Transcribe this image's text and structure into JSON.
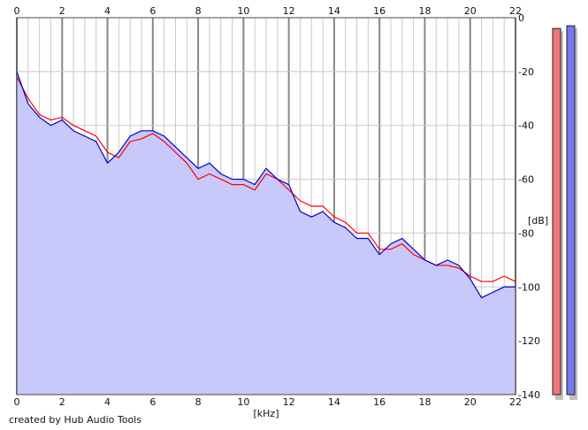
{
  "credit": "created by Hub Audio Tools",
  "chart_data": {
    "type": "line",
    "title": "",
    "xlabel": "[kHz]",
    "ylabel": "[dB]",
    "xlim": [
      0,
      22
    ],
    "ylim": [
      -140,
      0
    ],
    "x_ticks": [
      0,
      2,
      4,
      6,
      8,
      10,
      12,
      14,
      16,
      18,
      20,
      22
    ],
    "y_ticks": [
      0,
      -20,
      -40,
      -60,
      -80,
      -100,
      -120,
      -140
    ],
    "y_tick_labels": [
      "0",
      "-20",
      "-40",
      "-60",
      "-80",
      "-100",
      "-120",
      "-140"
    ],
    "grid": true,
    "x_tick_position": "top-and-bottom",
    "y_tick_position": "right",
    "colors": {
      "red_channel": "#ff0000",
      "blue_channel": "#0000cc",
      "fill": "#c8c8fa",
      "grid_major": "#888888",
      "grid_minor": "#c8c8c8",
      "red_meter": "#ee7777",
      "blue_meter": "#7777ee"
    },
    "series": [
      {
        "color": "#ff0000",
        "x": [
          0,
          0.5,
          1,
          1.5,
          2,
          2.5,
          3,
          3.5,
          4,
          4.5,
          5,
          5.5,
          6,
          6.5,
          7,
          7.5,
          8,
          8.5,
          9,
          9.5,
          10,
          10.5,
          11,
          11.5,
          12,
          12.5,
          13,
          13.5,
          14,
          14.5,
          15,
          15.5,
          16,
          16.5,
          17,
          17.5,
          18,
          18.5,
          19,
          19.5,
          20,
          20.5,
          21,
          21.5,
          22
        ],
        "y": [
          -22,
          -30,
          -36,
          -38,
          -37,
          -40,
          -42,
          -44,
          -50,
          -52,
          -46,
          -45,
          -43,
          -46,
          -50,
          -54,
          -60,
          -58,
          -60,
          -62,
          -62,
          -64,
          -58,
          -60,
          -64,
          -68,
          -70,
          -70,
          -74,
          -76,
          -80,
          -80,
          -86,
          -86,
          -84,
          -88,
          -90,
          -92,
          -92,
          -93,
          -96,
          -98,
          -98,
          -96,
          -98
        ]
      },
      {
        "color": "#0000cc",
        "x": [
          0,
          0.5,
          1,
          1.5,
          2,
          2.5,
          3,
          3.5,
          4,
          4.5,
          5,
          5.5,
          6,
          6.5,
          7,
          7.5,
          8,
          8.5,
          9,
          9.5,
          10,
          10.5,
          11,
          11.5,
          12,
          12.5,
          13,
          13.5,
          14,
          14.5,
          15,
          15.5,
          16,
          16.5,
          17,
          17.5,
          18,
          18.5,
          19,
          19.5,
          20,
          20.5,
          21,
          21.5,
          22
        ],
        "y": [
          -20,
          -32,
          -37,
          -40,
          -38,
          -42,
          -44,
          -46,
          -54,
          -50,
          -44,
          -42,
          -42,
          -44,
          -48,
          -52,
          -56,
          -54,
          -58,
          -60,
          -60,
          -62,
          -56,
          -60,
          -62,
          -72,
          -74,
          -72,
          -76,
          -78,
          -82,
          -82,
          -88,
          -84,
          -82,
          -86,
          -90,
          -92,
          -90,
          -92,
          -97,
          -104,
          -102,
          -100,
          -100
        ]
      }
    ],
    "level_meters": [
      {
        "color": "#ee7777",
        "top_db": -4
      },
      {
        "color": "#7777ee",
        "top_db": -3
      }
    ]
  }
}
